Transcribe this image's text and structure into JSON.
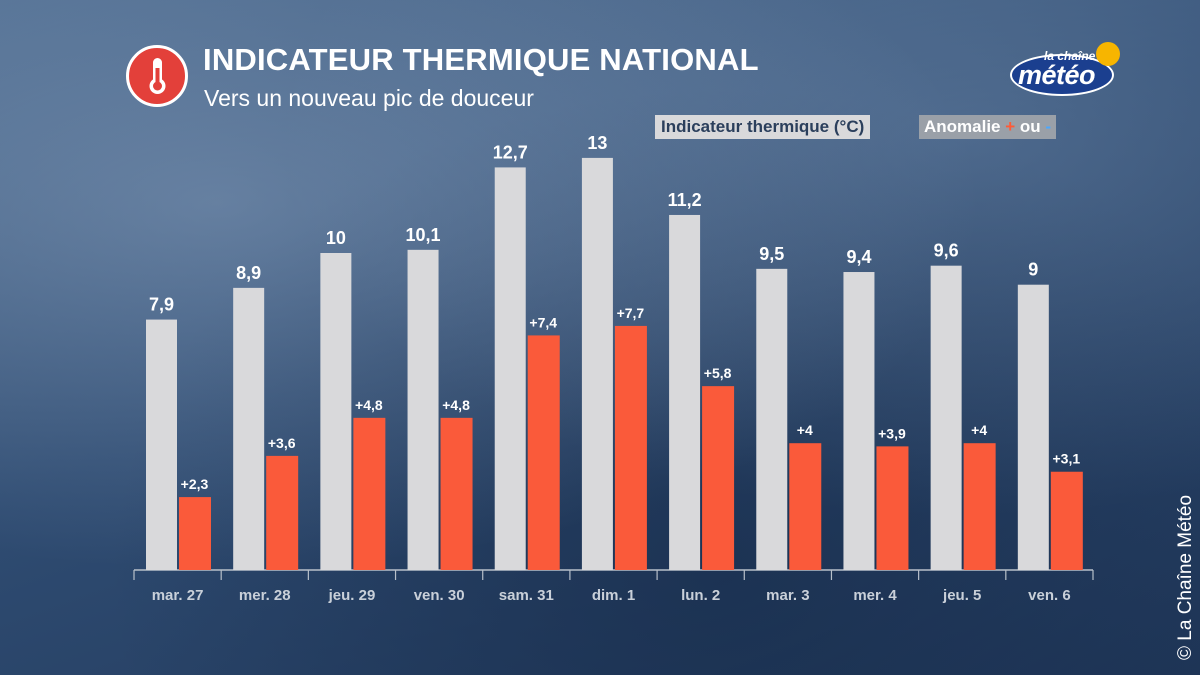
{
  "header": {
    "title": "INDICATEUR THERMIQUE NATIONAL",
    "subtitle": "Vers un nouveau pic de douceur",
    "icon": "thermometer-icon"
  },
  "logo": {
    "top": "la chaîne",
    "bottom": "météo"
  },
  "legend": {
    "series1": "Indicateur thermique (°C)",
    "series2_prefix": "Anomalie ",
    "series2_plus": "+",
    "series2_mid": " ou ",
    "series2_minus": "-"
  },
  "copyright": "© La Chaîne Météo",
  "colors": {
    "indicator": "#d9d9db",
    "anomaly": "#fa5a3a",
    "label_text": "#ffffff",
    "tick_text": "#c9d0d9",
    "axis": "#b8c0ca"
  },
  "chart_data": {
    "type": "bar",
    "title": "INDICATEUR THERMIQUE NATIONAL",
    "categories": [
      "mar. 27",
      "mer. 28",
      "jeu. 29",
      "ven. 30",
      "sam. 31",
      "dim. 1",
      "lun. 2",
      "mar. 3",
      "mer. 4",
      "jeu. 5",
      "ven. 6"
    ],
    "series": [
      {
        "name": "Indicateur thermique (°C)",
        "values": [
          7.9,
          8.9,
          10,
          10.1,
          12.7,
          13,
          11.2,
          9.5,
          9.4,
          9.6,
          9
        ],
        "labels": [
          "7,9",
          "8,9",
          "10",
          "10,1",
          "12,7",
          "13",
          "11,2",
          "9,5",
          "9,4",
          "9,6",
          "9"
        ]
      },
      {
        "name": "Anomalie + ou -",
        "values": [
          2.3,
          3.6,
          4.8,
          4.8,
          7.4,
          7.7,
          5.8,
          4,
          3.9,
          4,
          3.1
        ],
        "labels": [
          "+2,3",
          "+3,6",
          "+4,8",
          "+4,8",
          "+7,4",
          "+7,7",
          "+5,8",
          "+4",
          "+3,9",
          "+4",
          "+3,1"
        ]
      }
    ],
    "xlabel": "",
    "ylabel": "",
    "ylim": [
      0,
      14
    ],
    "grid": false,
    "legend": "top-right"
  }
}
